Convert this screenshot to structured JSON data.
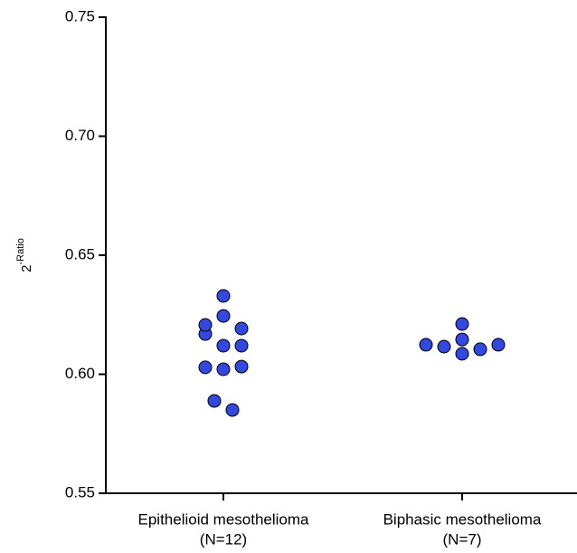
{
  "chart_data": {
    "type": "dot",
    "y_label": "2",
    "y_label_superscript": "-Ratio",
    "categories": [
      "Epithelioid mesothelioma",
      "Biphasic mesothelioma"
    ],
    "category_notes": [
      "(N=12)",
      "(N=7)"
    ],
    "values": [
      [
        0.6329,
        0.6207,
        0.6169,
        0.6245,
        0.6192,
        0.612,
        0.612,
        0.6029,
        0.6021,
        0.6032,
        0.5888,
        0.585
      ],
      [
        0.6211,
        0.6124,
        0.6116,
        0.6086,
        0.6105,
        0.6124,
        0.6146
      ]
    ],
    "color": "#3348e0",
    "ylim": [
      0.55,
      0.75
    ],
    "yticks": [
      0.55,
      {
        "value": 0.6,
        "label": "0.60"
      },
      0.65,
      {
        "value": 0.7,
        "label": "0.70"
      },
      0.75
    ]
  }
}
